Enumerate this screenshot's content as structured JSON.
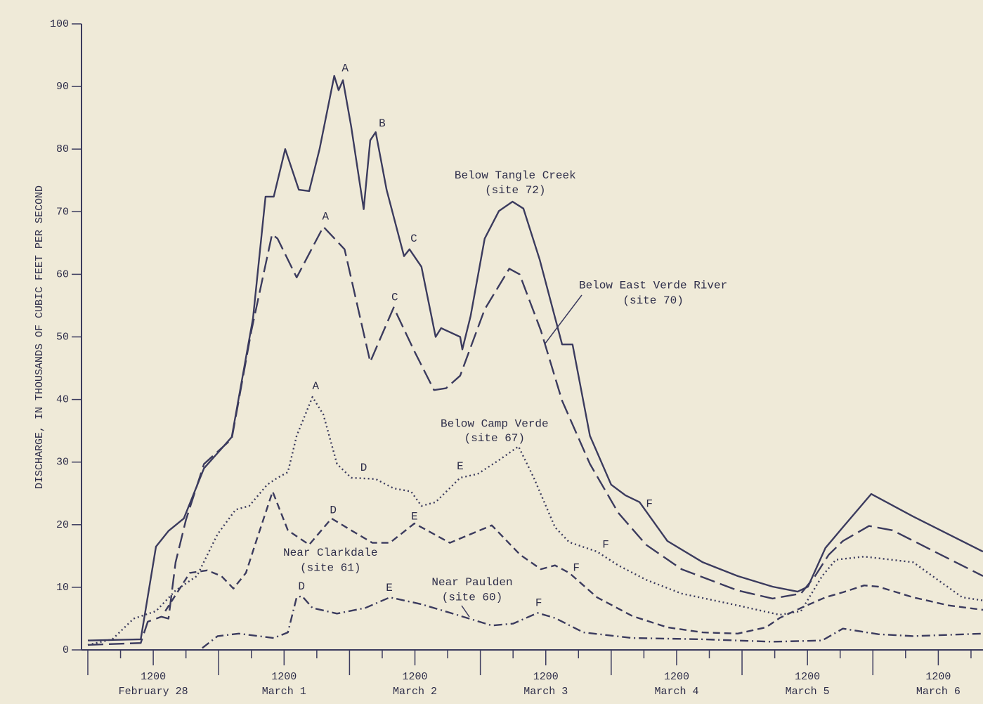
{
  "chart_data": {
    "type": "line",
    "y_label": "DISCHARGE, IN THOUSANDS OF CUBIC FEET PER SECOND",
    "xlim": [
      0,
      164.2
    ],
    "ylim": [
      0,
      100
    ],
    "yticks": [
      0,
      10,
      20,
      30,
      40,
      50,
      60,
      70,
      80,
      90,
      100
    ],
    "xticks": [
      {
        "value": 12,
        "label": "1200"
      },
      {
        "value": 36,
        "label": "1200"
      },
      {
        "value": 60,
        "label": "1200"
      },
      {
        "value": 84,
        "label": "1200"
      },
      {
        "value": 108,
        "label": "1200"
      },
      {
        "value": 132,
        "label": "1200"
      },
      {
        "value": 156,
        "label": "1200"
      }
    ],
    "x_day_labels": [
      "February 28",
      "March 1",
      "March 2",
      "March 3",
      "March 4",
      "March 5",
      "March 6"
    ],
    "x_major_ticks": [
      0,
      24,
      48,
      72,
      96,
      120,
      144
    ],
    "x_minor_ticks": [
      6,
      18,
      30,
      42,
      54,
      66,
      78,
      90,
      102,
      114,
      126,
      138,
      150,
      162
    ],
    "series": [
      {
        "name": "Below Tangle Creek (site 72)",
        "color": "#3b3b5e",
        "style": "solid",
        "x": [
          0,
          9.7,
          12.5,
          14.8,
          17.6,
          21.3,
          26.4,
          30.3,
          32.6,
          34.1,
          36.2,
          38.7,
          40.6,
          42.5,
          45.2,
          46,
          46.8,
          48.3,
          50.6,
          51.8,
          52.8,
          54.8,
          58,
          59,
          61.2,
          63.8,
          64.8,
          68.3,
          68.7,
          70.2,
          72.8,
          75.4,
          77.9,
          79.9,
          82.9,
          87,
          88.9,
          92.1,
          96,
          98.6,
          101.2,
          106.3,
          112.8,
          119.2,
          125.6,
          130.2,
          132.1,
          135.3,
          138.5,
          143.7,
          151.4,
          164.2
        ],
        "values": [
          1.5,
          1.7,
          16.5,
          19,
          21,
          29,
          34,
          53,
          72.4,
          72.4,
          80,
          73.5,
          73.3,
          80,
          91.7,
          89.4,
          91,
          83.6,
          70.4,
          81.4,
          82.7,
          73.5,
          62.9,
          64,
          61.2,
          50,
          51.4,
          50,
          48,
          53.3,
          65.7,
          70.1,
          71.6,
          70.5,
          62.3,
          48.8,
          48.8,
          34.2,
          26.4,
          24.7,
          23.6,
          17.4,
          14,
          11.8,
          10.1,
          9.3,
          10.1,
          16.3,
          19.6,
          24.9,
          21.3,
          15.7
        ]
      },
      {
        "name": "Below East Verde River (site 70)",
        "color": "#3b3b5e",
        "style": "long-dash",
        "x": [
          0,
          9.7,
          11,
          13.5,
          14.8,
          16.1,
          18,
          21.3,
          26.4,
          30,
          33.8,
          34.8,
          38.3,
          43.2,
          47.1,
          51.8,
          56.1,
          59.9,
          63.5,
          65.7,
          68.3,
          72.8,
          77.3,
          79.2,
          83.1,
          87,
          92.1,
          97.3,
          102.4,
          108.9,
          119.2,
          125.6,
          130.8,
          133.4,
          135.9,
          138.5,
          143.3,
          147.6,
          164.2
        ],
        "values": [
          0.8,
          1.1,
          4.5,
          5.3,
          5,
          14,
          20.8,
          29.7,
          33.7,
          51,
          66.4,
          65.7,
          59.5,
          67.6,
          64,
          46,
          54.7,
          47.7,
          41.5,
          41.8,
          43.8,
          54.4,
          60.9,
          60,
          51,
          39.8,
          29.7,
          21.9,
          16.8,
          12.9,
          9.5,
          8.2,
          9,
          11.8,
          15.2,
          17.4,
          19.8,
          19.1,
          11.8
        ]
      },
      {
        "name": "Below Camp Verde (site 67)",
        "color": "#3b3b5e",
        "style": "dotted",
        "x": [
          0,
          4.5,
          8.4,
          12.5,
          16.1,
          20,
          23.8,
          27.1,
          29.6,
          32.9,
          34.8,
          36.7,
          38.3,
          41.2,
          43.2,
          45.7,
          48.3,
          52.8,
          56.1,
          59.3,
          61.2,
          63.8,
          68.3,
          71.5,
          75.4,
          79,
          81.8,
          85.7,
          88.3,
          93.4,
          97.3,
          102.4,
          108.9,
          119.2,
          126.9,
          130.8,
          134.7,
          137.2,
          142.4,
          151.4,
          160.4,
          164.2
        ],
        "values": [
          0.8,
          1.7,
          5,
          6.2,
          9.5,
          11.8,
          18.5,
          22.4,
          23,
          26.4,
          27.5,
          28.4,
          34.2,
          40.4,
          37.6,
          29.7,
          27.5,
          27.3,
          25.8,
          25.3,
          23,
          23.6,
          27.5,
          28.1,
          30.3,
          32.5,
          27.5,
          19.6,
          17.2,
          15.7,
          13.5,
          11.2,
          9,
          7.1,
          5.6,
          6.2,
          11.8,
          14.4,
          14.9,
          14,
          8.4,
          7.9
        ]
      },
      {
        "name": "Near Clarkdale (site 61)",
        "color": "#3b3b5e",
        "style": "short-dash",
        "x": [
          14.2,
          18.7,
          21.9,
          24.5,
          26.7,
          29,
          30.9,
          33.9,
          36.7,
          40.6,
          44.7,
          48.3,
          52.2,
          55.4,
          59.9,
          66.4,
          74.1,
          79.3,
          83.1,
          85.7,
          88.3,
          93.4,
          99.9,
          106.3,
          112.8,
          119.2,
          124.4,
          126.9,
          130.8,
          135.3,
          138.5,
          142.4,
          145,
          151.4,
          157.9,
          164.2
        ],
        "values": [
          6.2,
          12.3,
          12.7,
          11.8,
          9.8,
          12.3,
          17.4,
          25.3,
          19.1,
          16.8,
          21,
          19.1,
          17.1,
          17.1,
          20.2,
          17.1,
          19.9,
          15.2,
          12.9,
          13.5,
          12.3,
          8.4,
          5.4,
          3.6,
          2.8,
          2.6,
          3.6,
          5.1,
          6.7,
          8.4,
          9.2,
          10.3,
          10.1,
          8.4,
          7.1,
          6.4
        ]
      },
      {
        "name": "Near Paulden (site 60)",
        "color": "#3b3b5e",
        "style": "dash-dot",
        "x": [
          21,
          23.8,
          27.7,
          34.1,
          36.7,
          38.3,
          39.3,
          41.2,
          45.7,
          50.9,
          55.4,
          61.2,
          67.7,
          74.1,
          78,
          82.5,
          85.7,
          90.9,
          99.9,
          112.8,
          125.6,
          134.7,
          138.5,
          145,
          151.4,
          164.2
        ],
        "values": [
          0.3,
          2.2,
          2.6,
          1.9,
          2.8,
          8.4,
          8.6,
          6.7,
          5.8,
          6.7,
          8.4,
          7.3,
          5.6,
          3.9,
          4.2,
          5.9,
          5.1,
          2.8,
          1.9,
          1.7,
          1.3,
          1.5,
          3.4,
          2.5,
          2.2,
          2.6
        ]
      }
    ],
    "annotations": [
      {
        "text": "A",
        "x": 47.2,
        "y": 92.9
      },
      {
        "text": "B",
        "x": 54,
        "y": 84.1
      },
      {
        "text": "C",
        "x": 59.8,
        "y": 65.7
      },
      {
        "text": "Below Tangle Creek",
        "x": 78.4,
        "y": 75.8
      },
      {
        "text": "(site 72)",
        "x": 78.4,
        "y": 73.4
      },
      {
        "text": "A",
        "x": 43.6,
        "y": 69.2
      },
      {
        "text": "C",
        "x": 56.3,
        "y": 56.3
      },
      {
        "text": "Below East Verde River",
        "x": 103.7,
        "y": 58.2
      },
      {
        "text": "(site 70)",
        "x": 103.7,
        "y": 55.8
      },
      {
        "text": "A",
        "x": 41.8,
        "y": 42.1
      },
      {
        "text": "D",
        "x": 50.6,
        "y": 29.1
      },
      {
        "text": "E",
        "x": 68.3,
        "y": 29.3
      },
      {
        "text": "Below Camp Verde",
        "x": 74.6,
        "y": 36.1
      },
      {
        "text": "(site 67)",
        "x": 74.6,
        "y": 33.8
      },
      {
        "text": "F",
        "x": 103,
        "y": 23.3
      },
      {
        "text": "F",
        "x": 95,
        "y": 16.8
      },
      {
        "text": "D",
        "x": 45,
        "y": 22.3
      },
      {
        "text": "E",
        "x": 59.9,
        "y": 21.3
      },
      {
        "text": "F",
        "x": 89.6,
        "y": 13.1
      },
      {
        "text": "Near Clarkdale",
        "x": 44.5,
        "y": 15.5
      },
      {
        "text": "(site 61)",
        "x": 44.5,
        "y": 13.1
      },
      {
        "text": "D",
        "x": 39.2,
        "y": 10.1
      },
      {
        "text": "E",
        "x": 55.3,
        "y": 9.9
      },
      {
        "text": "F",
        "x": 82.7,
        "y": 7.5
      },
      {
        "text": "Near Paulden",
        "x": 70.5,
        "y": 10.8
      },
      {
        "text": "(site 60)",
        "x": 70.5,
        "y": 8.4
      }
    ]
  }
}
